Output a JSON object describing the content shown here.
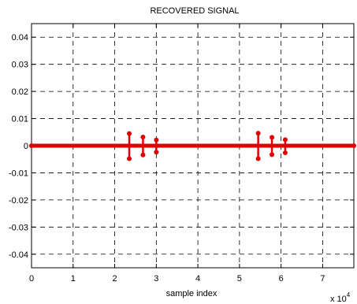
{
  "chart_data": {
    "type": "stem",
    "title": "RECOVERED SIGNAL",
    "xlabel": "sample index",
    "ylabel": "",
    "x_exponent_label": "x 10",
    "x_exponent_power": "4",
    "xlim": [
      0,
      7.75
    ],
    "ylim": [
      -0.045,
      0.045
    ],
    "x_ticks": [
      0,
      1,
      2,
      3,
      4,
      5,
      6,
      7
    ],
    "x_tick_labels": [
      "0",
      "1",
      "2",
      "3",
      "4",
      "5",
      "6",
      "7"
    ],
    "y_ticks": [
      0.04,
      0.03,
      0.02,
      0.01,
      0,
      -0.01,
      -0.02,
      -0.03,
      -0.04
    ],
    "y_tick_labels": [
      "0.04",
      "0.03",
      "0.02",
      "0.01",
      "0",
      "-0.01",
      "-0.02",
      "-0.03",
      "-0.04"
    ],
    "grid": true,
    "color": "#e00000",
    "baseline": 0,
    "stems": [
      {
        "x": 2.35,
        "y_top": 0.0045,
        "y_bottom": -0.0048
      },
      {
        "x": 2.68,
        "y_top": 0.0032,
        "y_bottom": -0.0034
      },
      {
        "x": 3.0,
        "y_top": 0.0021,
        "y_bottom": -0.0024
      },
      {
        "x": 5.45,
        "y_top": 0.0046,
        "y_bottom": -0.0048
      },
      {
        "x": 5.78,
        "y_top": 0.0031,
        "y_bottom": -0.0033
      },
      {
        "x": 6.1,
        "y_top": 0.0022,
        "y_bottom": -0.0026
      }
    ]
  }
}
